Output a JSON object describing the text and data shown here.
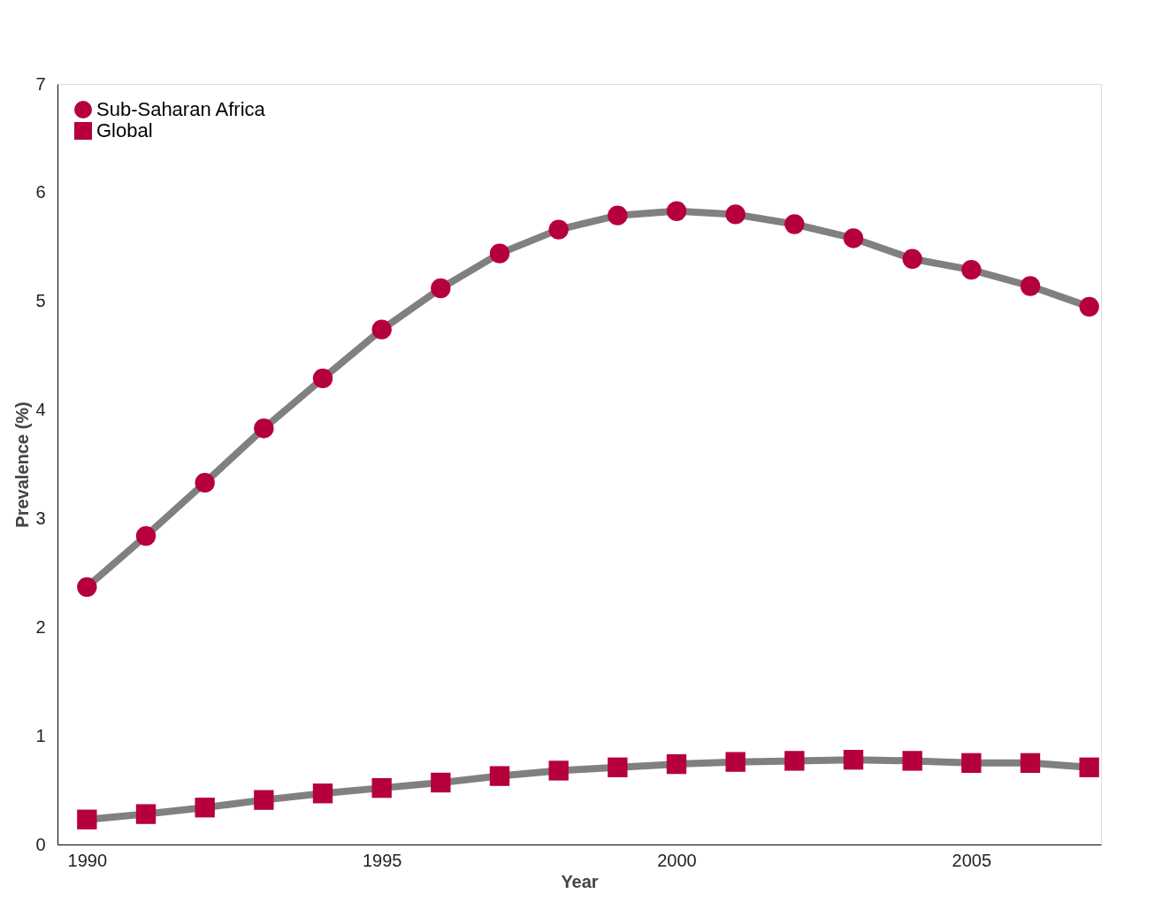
{
  "chart_data": {
    "type": "line",
    "xlabel": "Year",
    "ylabel": "Prevalence (%)",
    "x": [
      1990,
      1991,
      1992,
      1993,
      1994,
      1995,
      1996,
      1997,
      1998,
      1999,
      2000,
      2001,
      2002,
      2003,
      2004,
      2005,
      2006,
      2007
    ],
    "series": [
      {
        "name": "Sub-Saharan Africa",
        "color": "#b5003c",
        "marker": "circle",
        "values": [
          2.37,
          2.84,
          3.33,
          3.83,
          4.29,
          4.74,
          5.12,
          5.44,
          5.66,
          5.79,
          5.83,
          5.8,
          5.71,
          5.58,
          5.39,
          5.29,
          5.14,
          4.95
        ]
      },
      {
        "name": "Global",
        "color": "#b5003c",
        "marker": "square",
        "values": [
          0.23,
          0.28,
          0.34,
          0.41,
          0.47,
          0.52,
          0.57,
          0.63,
          0.68,
          0.71,
          0.74,
          0.76,
          0.77,
          0.78,
          0.77,
          0.75,
          0.75,
          0.71
        ]
      }
    ],
    "xlim": [
      1989.5,
      2007.2
    ],
    "xticks": [
      1990,
      1995,
      2000,
      2005
    ],
    "ylim": [
      0,
      7
    ],
    "yticks": [
      0,
      1,
      2,
      3,
      4,
      5,
      6,
      7
    ],
    "grid": false,
    "legend": "top left",
    "line_style": "solid"
  }
}
